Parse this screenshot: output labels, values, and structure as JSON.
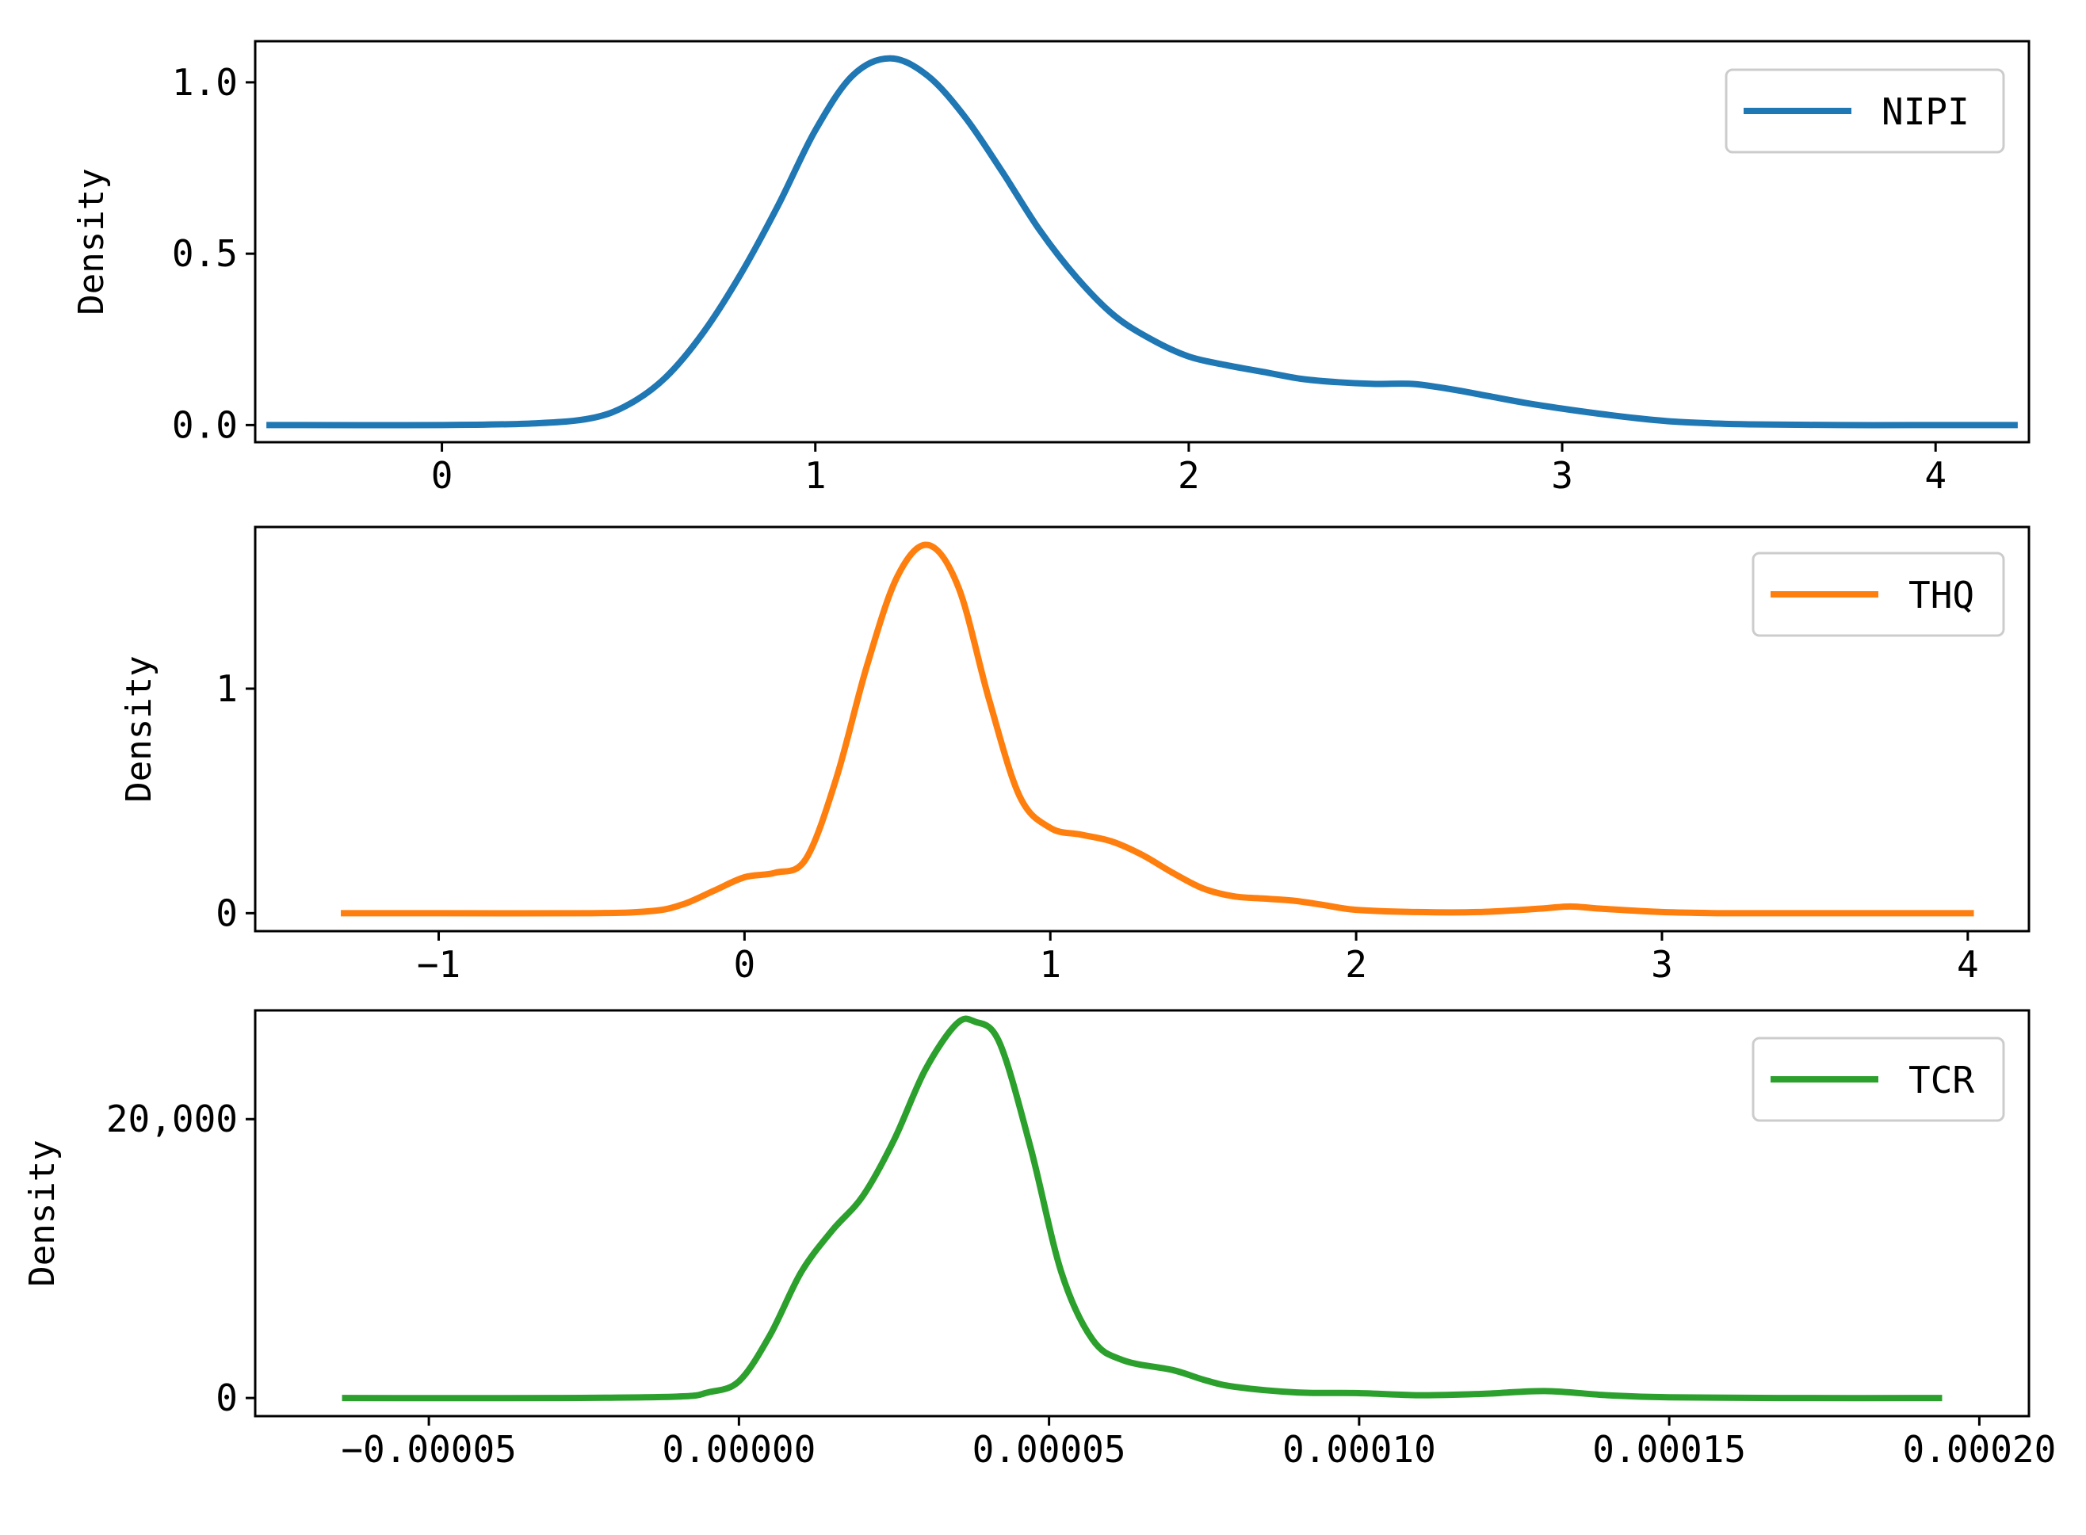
{
  "chart_data": [
    {
      "type": "line",
      "ylabel": "Density",
      "xlim": [
        -0.5,
        4.25
      ],
      "ylim": [
        -0.05,
        1.12
      ],
      "xticks": [
        0,
        1,
        2,
        3,
        4
      ],
      "xtick_labels": [
        "0",
        "1",
        "2",
        "3",
        "4"
      ],
      "yticks": [
        0.0,
        0.5,
        1.0
      ],
      "ytick_labels": [
        "0.0",
        "0.5",
        "1.0"
      ],
      "legend_position": "top-right",
      "series": [
        {
          "name": "NIPI",
          "color": "#1f77b4",
          "x": [
            -0.47,
            0.0,
            0.25,
            0.4,
            0.5,
            0.6,
            0.7,
            0.8,
            0.9,
            1.0,
            1.1,
            1.2,
            1.3,
            1.4,
            1.5,
            1.6,
            1.7,
            1.8,
            1.9,
            2.0,
            2.1,
            2.2,
            2.3,
            2.4,
            2.5,
            2.6,
            2.7,
            2.8,
            2.9,
            3.0,
            3.1,
            3.2,
            3.3,
            3.4,
            3.5,
            3.75,
            4.0,
            4.22
          ],
          "y": [
            0.0,
            0.0,
            0.005,
            0.02,
            0.06,
            0.14,
            0.27,
            0.44,
            0.64,
            0.86,
            1.02,
            1.07,
            1.02,
            0.9,
            0.74,
            0.57,
            0.43,
            0.32,
            0.25,
            0.2,
            0.175,
            0.155,
            0.135,
            0.125,
            0.12,
            0.12,
            0.105,
            0.085,
            0.065,
            0.048,
            0.033,
            0.02,
            0.01,
            0.005,
            0.002,
            0.0,
            0.0,
            0.0
          ]
        }
      ]
    },
    {
      "type": "line",
      "ylabel": "Density",
      "xlim": [
        -1.6,
        4.2
      ],
      "ylim": [
        -0.08,
        1.72
      ],
      "xticks": [
        -1,
        0,
        1,
        2,
        3,
        4
      ],
      "xtick_labels": [
        "−1",
        "0",
        "1",
        "2",
        "3",
        "4"
      ],
      "yticks": [
        0,
        1
      ],
      "ytick_labels": [
        "0",
        "1"
      ],
      "legend_position": "top-right",
      "series": [
        {
          "name": "THQ",
          "color": "#ff7f0e",
          "x": [
            -1.32,
            -1.0,
            -0.5,
            -0.3,
            -0.2,
            -0.1,
            0.0,
            0.1,
            0.2,
            0.3,
            0.4,
            0.5,
            0.6,
            0.7,
            0.8,
            0.9,
            1.0,
            1.1,
            1.2,
            1.3,
            1.4,
            1.5,
            1.6,
            1.7,
            1.8,
            1.9,
            2.0,
            2.2,
            2.4,
            2.6,
            2.7,
            2.8,
            3.0,
            3.2,
            3.5,
            4.02
          ],
          "y": [
            0.0,
            0.0,
            0.0,
            0.01,
            0.04,
            0.1,
            0.16,
            0.18,
            0.24,
            0.6,
            1.1,
            1.5,
            1.64,
            1.45,
            0.95,
            0.52,
            0.38,
            0.35,
            0.32,
            0.26,
            0.18,
            0.11,
            0.075,
            0.065,
            0.055,
            0.035,
            0.015,
            0.005,
            0.005,
            0.02,
            0.03,
            0.02,
            0.005,
            0.0,
            0.0,
            0.0
          ]
        }
      ]
    },
    {
      "type": "line",
      "ylabel": "Density",
      "xlim": [
        -7.8e-05,
        0.000208
      ],
      "ylim": [
        -1300,
        27800
      ],
      "xticks": [
        -5e-05,
        0.0,
        5e-05,
        0.0001,
        0.00015,
        0.0002
      ],
      "xtick_labels": [
        "−0.00005",
        "0.00000",
        "0.00005",
        "0.00010",
        "0.00015",
        "0.00020"
      ],
      "yticks": [
        0,
        20000
      ],
      "ytick_labels": [
        "0",
        "20,000"
      ],
      "legend_position": "top-right",
      "series": [
        {
          "name": "TCR",
          "color": "#2ca02c",
          "x": [
            -6.4e-05,
            -3e-05,
            -1e-05,
            -5e-06,
            0.0,
            5e-06,
            1e-05,
            1.5e-05,
            2e-05,
            2.5e-05,
            3e-05,
            3.5e-05,
            3.8e-05,
            4.2e-05,
            4.7e-05,
            5.2e-05,
            5.7e-05,
            6.2e-05,
            7e-05,
            7.5e-05,
            8e-05,
            9e-05,
            0.0001,
            0.00011,
            0.00012,
            0.00013,
            0.00014,
            0.00015,
            0.00017,
            0.000194
          ],
          "y": [
            0,
            0,
            100,
            400,
            1200,
            4500,
            9000,
            12000,
            14500,
            18500,
            23500,
            26800,
            27000,
            25500,
            18000,
            9000,
            4200,
            2700,
            2000,
            1300,
            800,
            400,
            350,
            200,
            300,
            500,
            200,
            50,
            0,
            0
          ]
        }
      ]
    }
  ]
}
